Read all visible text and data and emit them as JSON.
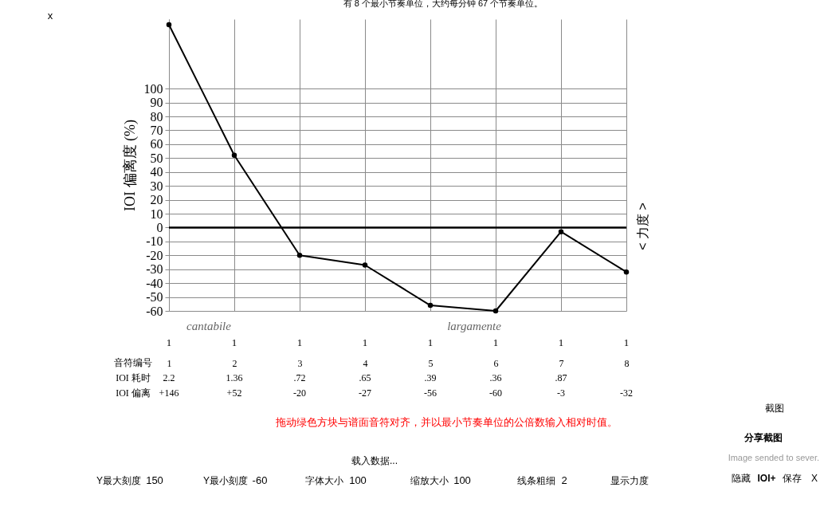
{
  "chart_data": [
    {
      "type": "line",
      "title": "有 8 个最小节奏单位，大约每分钟 67 个节奏单位。",
      "xlabel": "音符编号",
      "ylabel": "IOI 偏离度 (%)",
      "categories": [
        "1",
        "2",
        "3",
        "4",
        "5",
        "6",
        "7",
        "8"
      ],
      "series": [
        {
          "name": "IOI 偏离",
          "color": "#000000",
          "values": [
            146,
            52,
            -20,
            -27,
            -56,
            -60,
            -3,
            -32
          ],
          "value_labels": [
            "+146",
            "+52",
            "-20",
            "-27",
            "-56",
            "-60",
            "-3",
            "-32"
          ]
        }
      ],
      "ylim": [
        -60,
        150
      ],
      "yticks": [
        -60,
        -50,
        -40,
        -30,
        -20,
        -10,
        0,
        10,
        20,
        30,
        40,
        50,
        60,
        70,
        80,
        90,
        100
      ],
      "grid": true,
      "marker": "circle",
      "line_style": "solid",
      "ref_lines": [
        {
          "axis": "y",
          "value": 0,
          "color": "#000000"
        }
      ],
      "annotations": [
        "IOI 耗时",
        "< 力度 >",
        "拖动绿色方块与谱面音符对齐，并以最小节奏单位的公倍数输入相对时值。",
        "largamente",
        "cantabile",
        "1",
        "1",
        "1",
        "1",
        "1",
        "1",
        "1",
        "1",
        "2.2",
        "1.36",
        ".72",
        ".65",
        ".39",
        ".36",
        ".87"
      ]
    },
    {
      "type": "other",
      "annotations": [
        "x",
        "载入数据...",
        "Y最大刻度",
        "150",
        "Y最小刻度",
        "-60",
        "字体大小",
        "100",
        "缩放大小",
        "100",
        "线条粗细",
        "2",
        "显示力度",
        "截图",
        "分享截图",
        "Image sended to sever.",
        "隐藏",
        "IOI+",
        "保存",
        "X"
      ]
    }
  ]
}
